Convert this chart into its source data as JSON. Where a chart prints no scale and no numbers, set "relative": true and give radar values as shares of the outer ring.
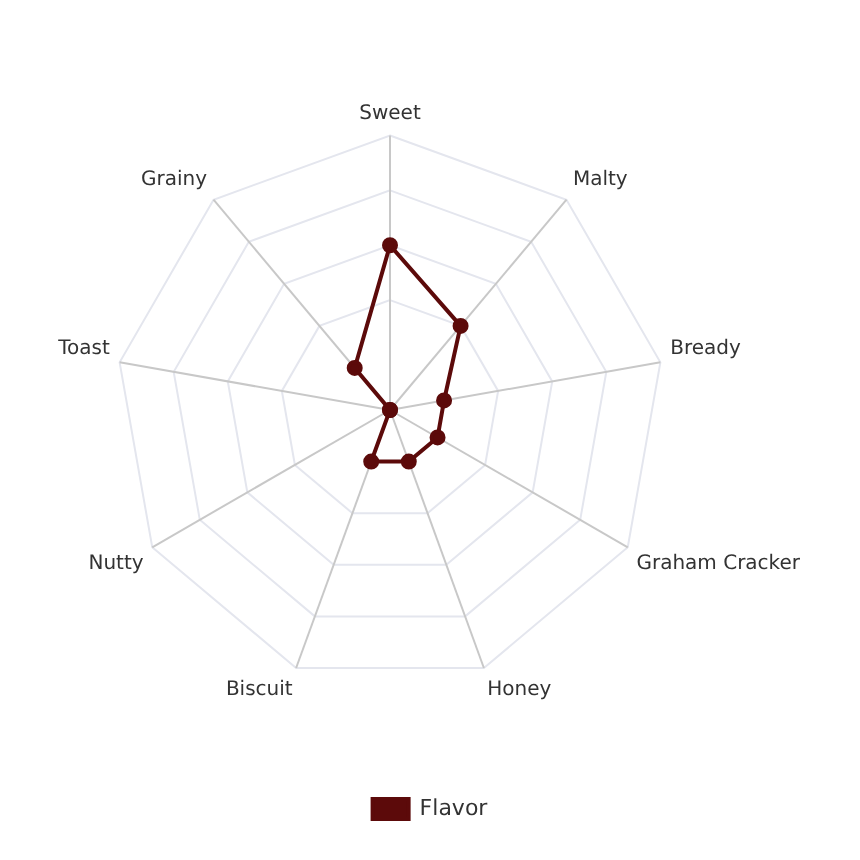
{
  "chart_data": {
    "type": "radar",
    "relative": true,
    "categories": [
      "Sweet",
      "Malty",
      "Bready",
      "Graham Cracker",
      "Honey",
      "Biscuit",
      "Nutty",
      "Toast",
      "Grainy"
    ],
    "series": [
      {
        "name": "Flavor",
        "color": "#5c0a0a",
        "values": [
          0.6,
          0.4,
          0.2,
          0.2,
          0.2,
          0.2,
          0,
          0,
          0.2
        ]
      }
    ],
    "legend": "bottom",
    "marker": "circle"
  }
}
